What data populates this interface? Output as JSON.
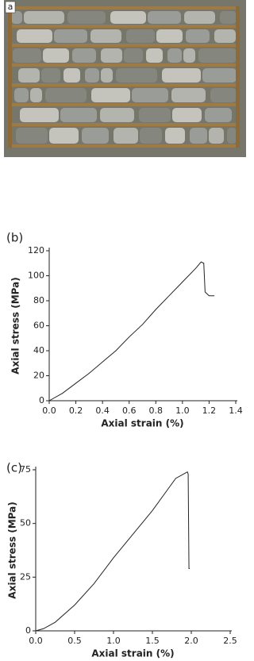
{
  "photo_label": "a",
  "chart_data": [
    {
      "type": "line",
      "panel_label": "(b)",
      "xlabel": "Axial strain (%)",
      "ylabel": "Axial stress (MPa)",
      "xlim": [
        0,
        1.4
      ],
      "ylim": [
        0,
        120
      ],
      "xticks": [
        {
          "value": 0,
          "label": "0.0"
        },
        {
          "value": 0.2,
          "label": "0.2"
        },
        {
          "value": 0.4,
          "label": "0.4"
        },
        {
          "value": 0.6,
          "label": "0.6"
        },
        {
          "value": 0.8,
          "label": "0.8"
        },
        {
          "value": 1,
          "label": "1.0"
        },
        {
          "value": 1.2,
          "label": "1.2"
        },
        {
          "value": 1.4,
          "label": "1.4"
        }
      ],
      "yticks": [
        0,
        20,
        40,
        60,
        80,
        100,
        120
      ],
      "series": [
        {
          "color": "#222222",
          "x": [
            0,
            0.1,
            0.2,
            0.3,
            0.4,
            0.5,
            0.6,
            0.7,
            0.8,
            0.9,
            1.0,
            1.1,
            1.14,
            1.16,
            1.17,
            1.2,
            1.24
          ],
          "values": [
            0,
            6,
            14,
            22,
            31,
            40,
            51,
            61,
            73,
            84,
            95,
            106,
            111,
            110,
            87,
            84,
            84
          ]
        }
      ]
    },
    {
      "type": "line",
      "panel_label": "(c)",
      "xlabel": "Axial strain (%)",
      "ylabel": "Axial stress (MPa)",
      "xlim": [
        0,
        2.5
      ],
      "ylim": [
        0,
        75
      ],
      "xticks": [
        {
          "value": 0,
          "label": "0.0"
        },
        {
          "value": 0.5,
          "label": "0.5"
        },
        {
          "value": 1,
          "label": "1.0"
        },
        {
          "value": 1.5,
          "label": "1.5"
        },
        {
          "value": 2,
          "label": "2.0"
        },
        {
          "value": 2.5,
          "label": "2.5"
        }
      ],
      "yticks": [
        0,
        25,
        50,
        75
      ],
      "series": [
        {
          "color": "#222222",
          "x": [
            0,
            0.1,
            0.25,
            0.5,
            0.75,
            1.0,
            1.25,
            1.5,
            1.7,
            1.8,
            1.9,
            1.95,
            1.96,
            1.97,
            1.98
          ],
          "values": [
            0,
            1,
            4,
            12,
            22,
            34,
            45,
            56,
            66,
            71,
            73,
            74,
            73,
            29,
            29
          ]
        }
      ]
    }
  ]
}
